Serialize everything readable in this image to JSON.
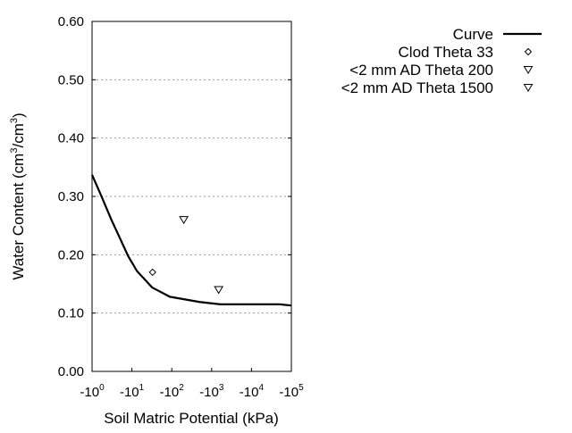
{
  "chart_data": {
    "type": "scatter",
    "title": "",
    "xlabel": "Soil Matric Potential (kPa)",
    "ylabel_main": "Water Content (cm",
    "ylabel_sup1": "3",
    "ylabel_mid": "/cm",
    "ylabel_sup2": "3",
    "ylabel_end": ")",
    "x_scale": "log",
    "xlim_log10": [
      0,
      5
    ],
    "ylim": [
      0,
      0.6
    ],
    "x_ticks": [
      {
        "base": "-10",
        "exp": "0",
        "log": 0
      },
      {
        "base": "-10",
        "exp": "1",
        "log": 1
      },
      {
        "base": "-10",
        "exp": "2",
        "log": 2
      },
      {
        "base": "-10",
        "exp": "3",
        "log": 3
      },
      {
        "base": "-10",
        "exp": "4",
        "log": 4
      },
      {
        "base": "-10",
        "exp": "5",
        "log": 5
      }
    ],
    "y_ticks": [
      "0.00",
      "0.10",
      "0.20",
      "0.30",
      "0.40",
      "0.50",
      "0.60"
    ],
    "y_grid": [
      0.1,
      0.2,
      0.3,
      0.4,
      0.5
    ],
    "legend_position": "top-right",
    "series": [
      {
        "name": "Curve",
        "kind": "line",
        "points": [
          [
            1,
            0.337
          ],
          [
            1.7,
            0.301
          ],
          [
            3.1,
            0.259
          ],
          [
            4.8,
            0.231
          ],
          [
            8,
            0.198
          ],
          [
            13.4,
            0.172
          ],
          [
            32,
            0.144
          ],
          [
            89,
            0.128
          ],
          [
            500,
            0.119
          ],
          [
            1660,
            0.115
          ],
          [
            51000,
            0.115
          ],
          [
            100000,
            0.113
          ]
        ]
      },
      {
        "name": "Clod Theta 33",
        "kind": "diamond",
        "points": [
          [
            33,
            0.17
          ]
        ]
      },
      {
        "name": "<2 mm AD Theta 200",
        "kind": "triangle-down",
        "points": [
          [
            200,
            0.26
          ]
        ]
      },
      {
        "name": "<2 mm AD Theta 1500",
        "kind": "triangle-down",
        "points": [
          [
            1500,
            0.14
          ]
        ]
      }
    ]
  }
}
